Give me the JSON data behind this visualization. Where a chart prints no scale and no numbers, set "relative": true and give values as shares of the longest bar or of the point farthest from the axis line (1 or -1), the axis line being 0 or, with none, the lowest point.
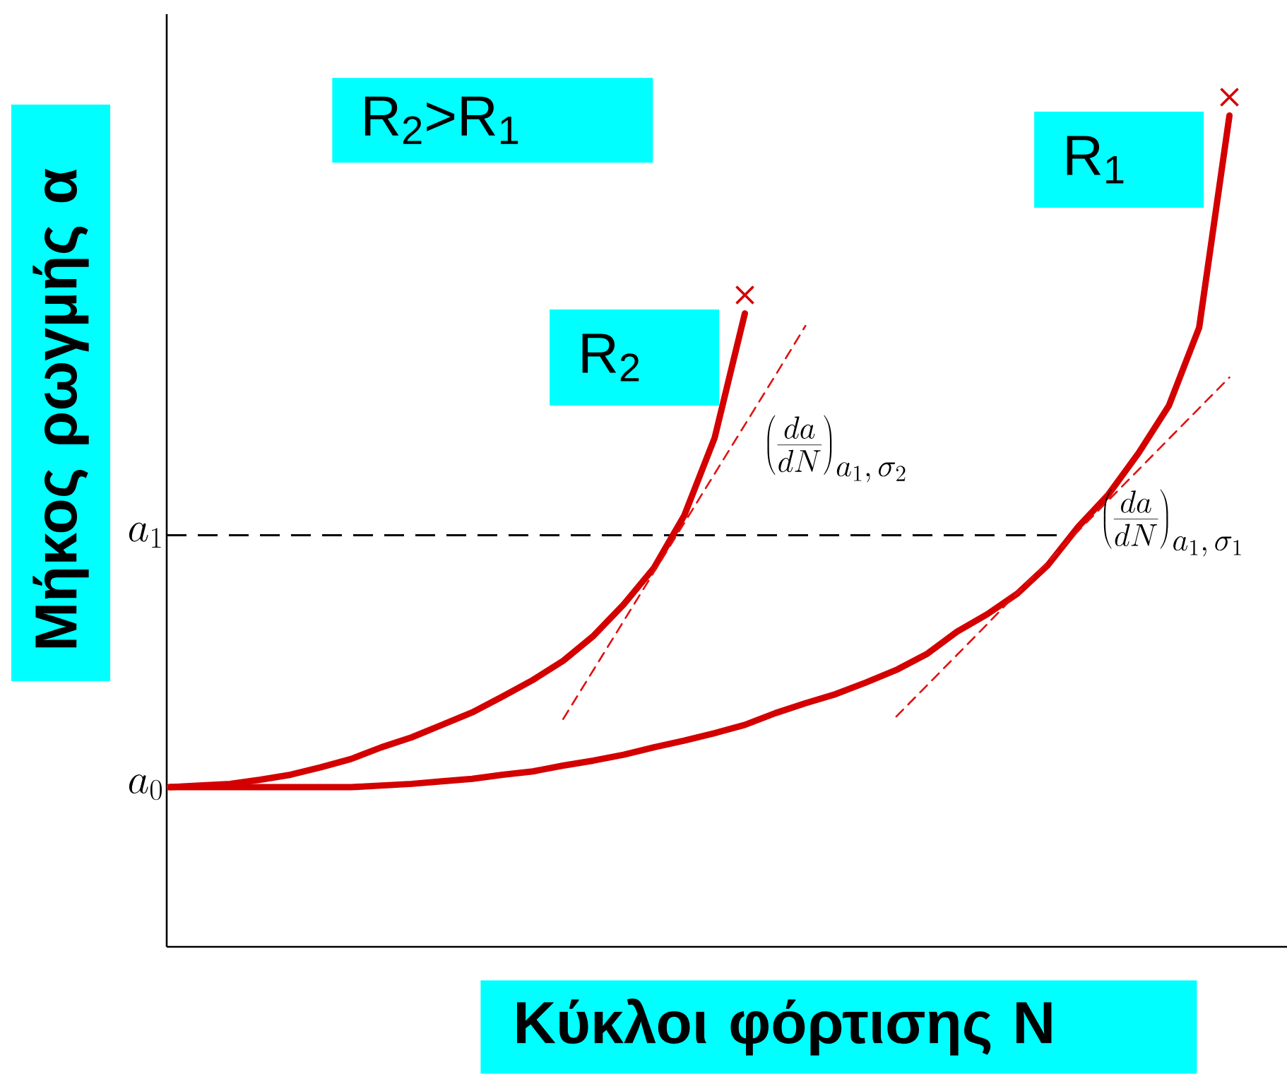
{
  "chart_data": {
    "type": "line",
    "relative": true,
    "xlabel": "Κύκλοι φόρτισης N",
    "ylabel": "Μήκος ρωγμής α",
    "annotations": [
      "R$_{2}$>R$_{1}$",
      "a_0"
    ],
    "categories": [
      null,
      null,
      null,
      null,
      null,
      null,
      null,
      null,
      null,
      null,
      null,
      null,
      null,
      null,
      null,
      null,
      null,
      null,
      null,
      null,
      null,
      null,
      null,
      null,
      null,
      null,
      null,
      null,
      null,
      null,
      null,
      null,
      null,
      null,
      null,
      null
    ],
    "series": [
      {
        "name": "R$_{2}$",
        "color": "#d40000",
        "values": [
          0.192,
          0.194,
          0.196,
          0.201,
          0.207,
          0.216,
          0.226,
          0.24,
          0.252,
          0.267,
          0.282,
          0.301,
          0.321,
          0.344,
          0.374,
          0.412,
          0.456,
          0.519,
          0.612,
          0.762,
          null,
          null,
          null,
          null,
          null,
          null,
          null,
          null,
          null,
          null,
          null,
          null,
          null,
          null,
          null,
          null
        ]
      },
      {
        "name": "R$_{1}$",
        "color": "#d40000",
        "values": [
          0.192,
          0.192,
          0.192,
          0.192,
          0.192,
          0.192,
          0.192,
          0.194,
          0.196,
          0.199,
          0.202,
          0.207,
          0.211,
          0.218,
          0.224,
          0.231,
          0.24,
          0.248,
          0.257,
          0.267,
          0.281,
          0.293,
          0.304,
          0.318,
          0.333,
          0.352,
          0.379,
          0.4,
          0.425,
          0.459,
          0.505,
          0.544,
          0.594,
          0.651,
          0.745,
          1.0
        ]
      },
      {
        "name": "\\left(\\frac{da}{dN}\\right)_{a_1,\\,\\sigma_2}",
        "color": "#e01010",
        "line_style": "dashed",
        "values": [
          null,
          null,
          null,
          null,
          null,
          null,
          null,
          null,
          null,
          null,
          null,
          null,
          null,
          0.274,
          0.333,
          0.392,
          0.451,
          0.51,
          0.569,
          0.628,
          0.687,
          0.747,
          null,
          null,
          null,
          null,
          null,
          null,
          null,
          null,
          null,
          null,
          null,
          null,
          null,
          null
        ]
      },
      {
        "name": "\\left(\\frac{da}{dN}\\right)_{a_1,\\,\\sigma_1}",
        "color": "#e01010",
        "line_style": "dashed",
        "values": [
          null,
          null,
          null,
          null,
          null,
          null,
          null,
          null,
          null,
          null,
          null,
          null,
          null,
          null,
          null,
          null,
          null,
          null,
          null,
          null,
          null,
          null,
          null,
          null,
          0.277,
          0.314,
          0.351,
          0.388,
          0.426,
          0.463,
          0.5,
          0.537,
          0.574,
          0.611,
          0.648,
          0.685
        ]
      }
    ],
    "ref_lines": [
      {
        "axis": "y",
        "value": 0.495,
        "label": "a_1",
        "color": "#000000",
        "line_style": "dashed"
      }
    ]
  }
}
